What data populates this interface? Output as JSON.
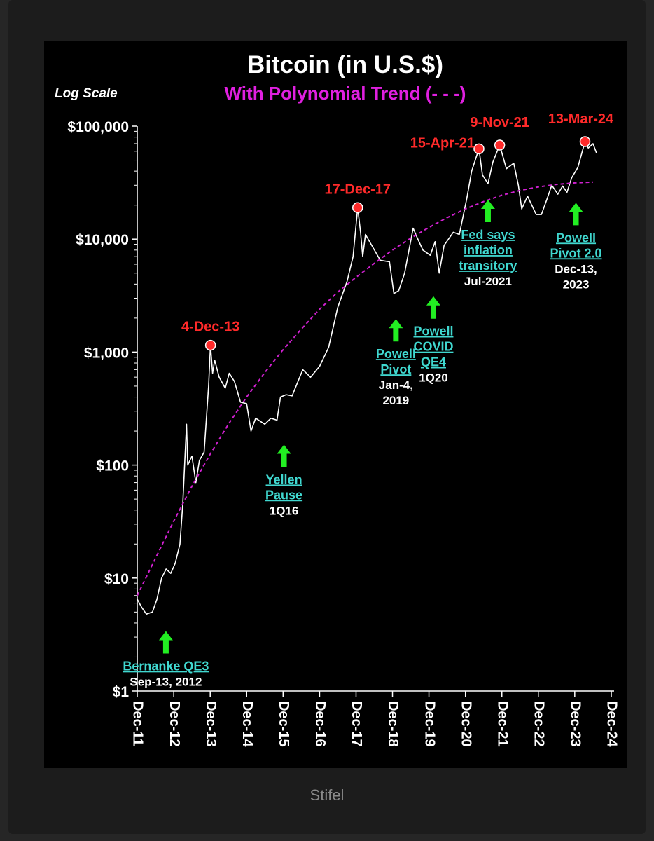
{
  "chart_data": {
    "type": "line",
    "title": "Bitcoin (in U.S.$)",
    "subtitle": "With Polynomial Trend (- - -)",
    "scale_note": "Log Scale",
    "y_scale": "log",
    "ylim": [
      1,
      100000
    ],
    "xlim": [
      "2011-12-01",
      "2024-12-01"
    ],
    "y_ticks": [
      {
        "value": 1,
        "label": "$1"
      },
      {
        "value": 10,
        "label": "$10"
      },
      {
        "value": 100,
        "label": "$100"
      },
      {
        "value": 1000,
        "label": "$1,000"
      },
      {
        "value": 10000,
        "label": "$10,000"
      },
      {
        "value": 100000,
        "label": "$100,000"
      }
    ],
    "x_ticks": [
      {
        "value": "2011-12-01",
        "label": "Dec-11"
      },
      {
        "value": "2012-12-01",
        "label": "Dec-12"
      },
      {
        "value": "2013-12-01",
        "label": "Dec-13"
      },
      {
        "value": "2014-12-01",
        "label": "Dec-14"
      },
      {
        "value": "2015-12-01",
        "label": "Dec-15"
      },
      {
        "value": "2016-12-01",
        "label": "Dec-16"
      },
      {
        "value": "2017-12-01",
        "label": "Dec-17"
      },
      {
        "value": "2018-12-01",
        "label": "Dec-18"
      },
      {
        "value": "2019-12-01",
        "label": "Dec-19"
      },
      {
        "value": "2020-12-01",
        "label": "Dec-20"
      },
      {
        "value": "2021-12-01",
        "label": "Dec-21"
      },
      {
        "value": "2022-12-01",
        "label": "Dec-22"
      },
      {
        "value": "2023-12-01",
        "label": "Dec-23"
      },
      {
        "value": "2024-12-01",
        "label": "Dec-24"
      }
    ],
    "series": [
      {
        "color": "#ffffff",
        "style": "solid",
        "points": [
          [
            "2011-12-01",
            6.5
          ],
          [
            "2012-01-15",
            5.5
          ],
          [
            "2012-03-01",
            4.8
          ],
          [
            "2012-05-01",
            5.0
          ],
          [
            "2012-06-15",
            6.5
          ],
          [
            "2012-08-01",
            10
          ],
          [
            "2012-09-15",
            12
          ],
          [
            "2012-11-01",
            11
          ],
          [
            "2012-12-15",
            13.5
          ],
          [
            "2013-02-01",
            20
          ],
          [
            "2013-03-01",
            45
          ],
          [
            "2013-04-08",
            230
          ],
          [
            "2013-04-20",
            100
          ],
          [
            "2013-06-01",
            120
          ],
          [
            "2013-07-10",
            70
          ],
          [
            "2013-08-15",
            110
          ],
          [
            "2013-10-01",
            130
          ],
          [
            "2013-11-15",
            500
          ],
          [
            "2013-12-04",
            1150
          ],
          [
            "2013-12-25",
            650
          ],
          [
            "2014-01-15",
            850
          ],
          [
            "2014-03-01",
            600
          ],
          [
            "2014-05-01",
            480
          ],
          [
            "2014-06-10",
            650
          ],
          [
            "2014-08-01",
            550
          ],
          [
            "2014-10-01",
            360
          ],
          [
            "2014-12-01",
            350
          ],
          [
            "2015-01-14",
            200
          ],
          [
            "2015-03-01",
            260
          ],
          [
            "2015-06-01",
            230
          ],
          [
            "2015-08-01",
            260
          ],
          [
            "2015-10-01",
            250
          ],
          [
            "2015-11-05",
            400
          ],
          [
            "2016-01-01",
            420
          ],
          [
            "2016-03-01",
            410
          ],
          [
            "2016-06-15",
            700
          ],
          [
            "2016-09-01",
            600
          ],
          [
            "2016-12-01",
            750
          ],
          [
            "2017-03-01",
            1100
          ],
          [
            "2017-06-01",
            2500
          ],
          [
            "2017-09-01",
            4200
          ],
          [
            "2017-11-01",
            7000
          ],
          [
            "2017-12-17",
            19000
          ],
          [
            "2018-01-15",
            11500
          ],
          [
            "2018-02-06",
            7000
          ],
          [
            "2018-03-05",
            11000
          ],
          [
            "2018-05-01",
            9000
          ],
          [
            "2018-08-01",
            6500
          ],
          [
            "2018-11-01",
            6300
          ],
          [
            "2018-12-15",
            3300
          ],
          [
            "2019-02-01",
            3500
          ],
          [
            "2019-04-01",
            5000
          ],
          [
            "2019-06-26",
            12500
          ],
          [
            "2019-08-01",
            10500
          ],
          [
            "2019-10-01",
            8000
          ],
          [
            "2019-12-15",
            7200
          ],
          [
            "2020-02-01",
            9500
          ],
          [
            "2020-03-13",
            5000
          ],
          [
            "2020-05-01",
            8800
          ],
          [
            "2020-08-01",
            11500
          ],
          [
            "2020-10-01",
            11000
          ],
          [
            "2020-12-15",
            23000
          ],
          [
            "2021-02-01",
            40000
          ],
          [
            "2021-04-15",
            63000
          ],
          [
            "2021-05-20",
            37000
          ],
          [
            "2021-07-15",
            31000
          ],
          [
            "2021-09-01",
            48000
          ],
          [
            "2021-11-09",
            68000
          ],
          [
            "2022-01-15",
            42000
          ],
          [
            "2022-03-30",
            47000
          ],
          [
            "2022-05-15",
            30000
          ],
          [
            "2022-06-18",
            18500
          ],
          [
            "2022-08-15",
            24000
          ],
          [
            "2022-11-10",
            16500
          ],
          [
            "2023-01-01",
            16500
          ],
          [
            "2023-03-01",
            23000
          ],
          [
            "2023-04-15",
            30000
          ],
          [
            "2023-06-15",
            25000
          ],
          [
            "2023-08-01",
            29500
          ],
          [
            "2023-09-15",
            26000
          ],
          [
            "2023-11-01",
            35000
          ],
          [
            "2024-01-01",
            43000
          ],
          [
            "2024-03-13",
            73000
          ],
          [
            "2024-04-15",
            64000
          ],
          [
            "2024-06-01",
            70000
          ],
          [
            "2024-07-05",
            58000
          ]
        ]
      },
      {
        "color": "#d020d0",
        "style": "dashed",
        "points": [
          [
            "2011-12-01",
            7
          ],
          [
            "2012-06-01",
            15
          ],
          [
            "2012-12-01",
            32
          ],
          [
            "2013-06-01",
            65
          ],
          [
            "2013-12-01",
            125
          ],
          [
            "2014-06-01",
            230
          ],
          [
            "2014-12-01",
            400
          ],
          [
            "2015-06-01",
            660
          ],
          [
            "2015-12-01",
            1050
          ],
          [
            "2016-06-01",
            1600
          ],
          [
            "2016-12-01",
            2400
          ],
          [
            "2017-06-01",
            3400
          ],
          [
            "2017-12-01",
            4600
          ],
          [
            "2018-06-01",
            6100
          ],
          [
            "2018-12-01",
            8000
          ],
          [
            "2019-06-01",
            10200
          ],
          [
            "2019-12-01",
            12700
          ],
          [
            "2020-06-01",
            15500
          ],
          [
            "2020-12-01",
            18500
          ],
          [
            "2021-06-01",
            21500
          ],
          [
            "2021-12-01",
            24500
          ],
          [
            "2022-06-01",
            27000
          ],
          [
            "2022-12-01",
            29000
          ],
          [
            "2023-06-01",
            30500
          ],
          [
            "2023-12-01",
            31500
          ],
          [
            "2024-06-01",
            32000
          ]
        ]
      }
    ],
    "peaks": [
      {
        "date": "2013-12-04",
        "value": 1150,
        "label": "4-Dec-13"
      },
      {
        "date": "2017-12-17",
        "value": 19000,
        "label": "17-Dec-17"
      },
      {
        "date": "2021-04-15",
        "value": 63000,
        "label": "15-Apr-21"
      },
      {
        "date": "2021-11-09",
        "value": 68000,
        "label": "9-Nov-21"
      },
      {
        "date": "2024-03-13",
        "value": 73000,
        "label": "13-Mar-24"
      }
    ],
    "events": [
      {
        "date": "2012-09-13",
        "value": 3.8,
        "link": [
          "Bernanke QE3"
        ],
        "text": [
          "Sep-13, 2012"
        ]
      },
      {
        "date": "2015-12-10",
        "value": 170,
        "link": [
          "Yellen",
          "Pause"
        ],
        "text": [
          "1Q16"
        ]
      },
      {
        "date": "2019-01-04",
        "value": 2200,
        "link": [
          "Powell",
          "Pivot"
        ],
        "text": [
          "Jan-4,",
          "2019"
        ]
      },
      {
        "date": "2020-01-15",
        "value": 3500,
        "link": [
          "Powell",
          "COVID",
          "QE4"
        ],
        "text": [
          "1Q20"
        ]
      },
      {
        "date": "2021-07-15",
        "value": 25000,
        "link": [
          "Fed says",
          "inflation",
          "transitory"
        ],
        "text": [
          "Jul-2021"
        ]
      },
      {
        "date": "2023-12-13",
        "value": 23500,
        "link": [
          "Powell",
          "Pivot 2.0"
        ],
        "text": [
          "Dec-13,",
          "2023"
        ]
      }
    ]
  },
  "source": "Stifel",
  "colors": {
    "background": "#000000",
    "price_line": "#ffffff",
    "trend_line": "#d020d0",
    "peak_marker": "#ff2a2a",
    "event_arrow": "#22ee22",
    "event_link": "#40d8d0"
  }
}
